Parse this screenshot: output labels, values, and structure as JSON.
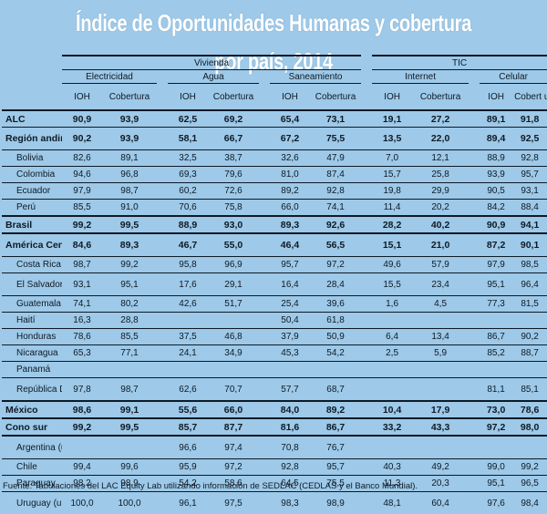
{
  "title": "Índice de Oportunidades Humanas y cobertura por país, 2014",
  "groups": {
    "vivienda": "Vivienda",
    "tic": "TIC"
  },
  "subgroups": {
    "electricidad": "Electricidad",
    "agua": "Agua",
    "saneamiento": "Saneamiento",
    "internet": "Internet",
    "celular": "Celular"
  },
  "col": {
    "ioh": "IOH",
    "cobertura": "Cobertura",
    "cobertura_split": "Cobert ura"
  },
  "rows": [
    {
      "label": "ALC",
      "cells": [
        "90,9",
        "93,9",
        "62,5",
        "69,2",
        "65,4",
        "73,1",
        "19,1",
        "27,2",
        "89,1",
        "91,8"
      ]
    },
    {
      "label": "Región andina",
      "cells": [
        "90,2",
        "93,9",
        "58,1",
        "66,7",
        "67,2",
        "75,5",
        "13,5",
        "22,0",
        "89,4",
        "92,5"
      ]
    },
    {
      "label": "Bolivia",
      "cells": [
        "82,6",
        "89,1",
        "32,5",
        "38,7",
        "32,6",
        "47,9",
        "7,0",
        "12,1",
        "88,9",
        "92,8"
      ]
    },
    {
      "label": "Colombia",
      "cells": [
        "94,6",
        "96,8",
        "69,3",
        "79,6",
        "81,0",
        "87,4",
        "15,7",
        "25,8",
        "93,9",
        "95,7"
      ]
    },
    {
      "label": "Ecuador",
      "cells": [
        "97,9",
        "98,7",
        "60,2",
        "72,6",
        "89,2",
        "92,8",
        "19,8",
        "29,9",
        "90,5",
        "93,1"
      ]
    },
    {
      "label": "Perú",
      "cells": [
        "85,5",
        "91,0",
        "70,6",
        "75,8",
        "66,0",
        "74,1",
        "11,4",
        "20,2",
        "84,2",
        "88,4"
      ]
    },
    {
      "label": "Brasil",
      "cells": [
        "99,2",
        "99,5",
        "88,9",
        "93,0",
        "89,3",
        "92,6",
        "28,2",
        "40,2",
        "90,9",
        "94,1"
      ]
    },
    {
      "label": "América Central",
      "cells": [
        "84,6",
        "89,3",
        "46,7",
        "55,0",
        "46,4",
        "56,5",
        "15,1",
        "21,0",
        "87,2",
        "90,1"
      ]
    },
    {
      "label": "Costa Rica",
      "cells": [
        "98,7",
        "99,2",
        "95,8",
        "96,9",
        "95,7",
        "97,2",
        "49,6",
        "57,9",
        "97,9",
        "98,5"
      ]
    },
    {
      "label": "El Salvador",
      "cells": [
        "93,1",
        "95,1",
        "17,6",
        "29,1",
        "16,4",
        "28,4",
        "15,5",
        "23,4",
        "95,1",
        "96,4"
      ]
    },
    {
      "label": "Guatemala",
      "cells": [
        "74,1",
        "80,2",
        "42,6",
        "51,7",
        "25,4",
        "39,6",
        "1,6",
        "4,5",
        "77,3",
        "81,5"
      ]
    },
    {
      "label": "Haití",
      "cells": [
        "16,3",
        "28,8",
        "",
        "",
        "50,4",
        "61,8",
        "",
        "",
        "",
        ""
      ]
    },
    {
      "label": "Honduras",
      "cells": [
        "78,6",
        "85,5",
        "37,5",
        "46,8",
        "37,9",
        "50,9",
        "6,4",
        "13,4",
        "86,7",
        "90,2"
      ]
    },
    {
      "label": "Nicaragua",
      "cells": [
        "65,3",
        "77,1",
        "24,1",
        "34,9",
        "45,3",
        "54,2",
        "2,5",
        "5,9",
        "85,2",
        "88,7"
      ]
    },
    {
      "label": "Panamá",
      "cells": [
        "",
        "",
        "",
        "",
        "",
        "",
        "",
        "",
        "",
        ""
      ]
    },
    {
      "label": "República Dominicana",
      "cells": [
        "97,8",
        "98,7",
        "62,6",
        "70,7",
        "57,7",
        "68,7",
        "",
        "",
        "81,1",
        "85,1"
      ]
    },
    {
      "label": "México",
      "cells": [
        "98,6",
        "99,1",
        "55,6",
        "66,0",
        "84,0",
        "89,2",
        "10,4",
        "17,9",
        "73,0",
        "78,6"
      ]
    },
    {
      "label": "Cono sur",
      "cells": [
        "99,2",
        "99,5",
        "85,7",
        "87,7",
        "81,6",
        "86,7",
        "33,2",
        "43,3",
        "97,2",
        "98,0"
      ]
    },
    {
      "label": "Argentina (urbano)",
      "cells": [
        "",
        "",
        "96,6",
        "97,4",
        "70,8",
        "76,7",
        "",
        "",
        "",
        ""
      ]
    },
    {
      "label": "Chile",
      "cells": [
        "99,4",
        "99,6",
        "95,9",
        "97,2",
        "92,8",
        "95,7",
        "40,3",
        "49,2",
        "99,0",
        "99,2"
      ]
    },
    {
      "label": "Paraguay",
      "cells": [
        "98,2",
        "98,9",
        "54,2",
        "58,6",
        "64,5",
        "75,5",
        "11,3",
        "20,3",
        "95,1",
        "96,5"
      ]
    },
    {
      "label": "Uruguay (urbano)",
      "cells": [
        "100,0",
        "100,0",
        "96,1",
        "97,5",
        "98,3",
        "98,9",
        "48,1",
        "60,4",
        "97,6",
        "98,4"
      ]
    }
  ],
  "source": "Fuente: Tabulaciones del LAC Equity Lab utilizando información de SEDLAC (CEDLAS y el Banco Mundial)."
}
